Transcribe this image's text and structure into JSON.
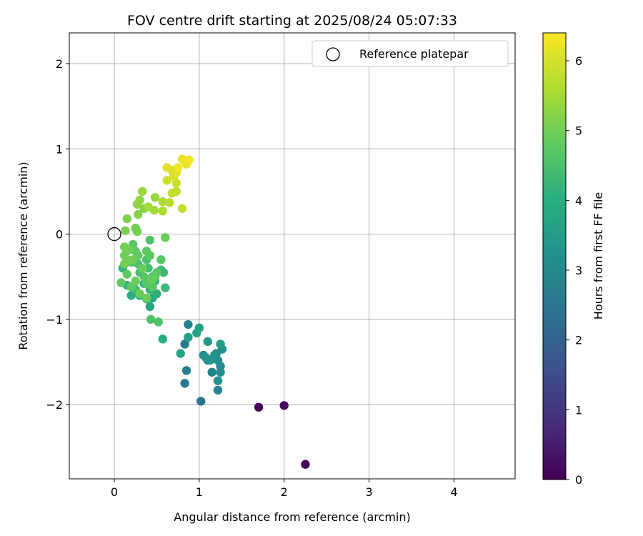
{
  "chart_data": {
    "type": "scatter",
    "title": "FOV centre drift starting at 2025/08/24 05:07:33",
    "xlabel": "Angular distance from reference (arcmin)",
    "ylabel": "Rotation from reference (arcmin)",
    "xlim": [
      -0.53,
      4.72
    ],
    "ylim": [
      -2.87,
      2.36
    ],
    "xticks": [
      0,
      1,
      2,
      3,
      4
    ],
    "yticks": [
      -2,
      -1,
      0,
      1,
      2
    ],
    "grid": true,
    "legend": {
      "placement": "top-right",
      "entries": [
        "Reference platepar"
      ]
    },
    "reference_point": {
      "x": 0,
      "y": 0
    },
    "colorbar": {
      "label": "Hours from first FF file",
      "range": [
        0,
        6.4
      ],
      "ticks": [
        0,
        1,
        2,
        3,
        4,
        5,
        6
      ],
      "colormap": "viridis"
    },
    "series": [
      {
        "points": [
          [
            2.25,
            -2.7,
            0.0
          ],
          [
            1.7,
            -2.03,
            0.05
          ],
          [
            2.0,
            -2.01,
            0.1
          ],
          [
            1.02,
            -1.96,
            2.5
          ],
          [
            0.83,
            -1.75,
            2.6
          ],
          [
            0.85,
            -1.6,
            2.7
          ],
          [
            1.22,
            -1.83,
            2.8
          ],
          [
            1.15,
            -1.62,
            2.9
          ],
          [
            1.2,
            -1.4,
            2.9
          ],
          [
            1.25,
            -1.55,
            3.0
          ],
          [
            1.05,
            -1.42,
            3.0
          ],
          [
            1.1,
            -1.48,
            3.1
          ],
          [
            1.22,
            -1.48,
            3.1
          ],
          [
            1.25,
            -1.62,
            3.15
          ],
          [
            1.27,
            -1.35,
            3.2
          ],
          [
            1.18,
            -1.42,
            3.2
          ],
          [
            1.22,
            -1.72,
            3.25
          ],
          [
            1.13,
            -1.48,
            3.3
          ],
          [
            0.83,
            -1.29,
            2.6
          ],
          [
            0.87,
            -1.06,
            2.8
          ],
          [
            1.1,
            -1.26,
            3.4
          ],
          [
            1.25,
            -1.29,
            3.5
          ],
          [
            1.0,
            -1.1,
            3.6
          ],
          [
            0.87,
            -1.21,
            3.6
          ],
          [
            0.78,
            -1.4,
            3.7
          ],
          [
            0.97,
            -1.16,
            3.7
          ],
          [
            1.08,
            -1.45,
            3.3
          ],
          [
            0.57,
            -1.23,
            4.0
          ],
          [
            0.42,
            -0.85,
            3.8
          ],
          [
            0.38,
            -0.76,
            3.9
          ],
          [
            0.45,
            -0.75,
            3.8
          ],
          [
            0.3,
            -0.72,
            4.0
          ],
          [
            0.2,
            -0.72,
            4.0
          ],
          [
            0.1,
            -0.4,
            4.1
          ],
          [
            0.15,
            -0.6,
            4.1
          ],
          [
            0.22,
            -0.62,
            4.2
          ],
          [
            0.35,
            -0.58,
            4.2
          ],
          [
            0.55,
            -0.42,
            4.3
          ],
          [
            0.48,
            -0.55,
            4.2
          ],
          [
            0.5,
            -0.7,
            4.1
          ],
          [
            0.42,
            -0.65,
            4.2
          ],
          [
            0.58,
            -0.45,
            4.3
          ],
          [
            0.6,
            -0.63,
            4.3
          ],
          [
            0.4,
            -0.4,
            4.4
          ],
          [
            0.25,
            -0.65,
            4.4
          ],
          [
            0.3,
            -0.45,
            4.5
          ],
          [
            0.45,
            -0.5,
            4.5
          ],
          [
            0.38,
            -0.3,
            4.5
          ],
          [
            0.28,
            -0.35,
            4.5
          ],
          [
            0.43,
            -1.0,
            4.6
          ],
          [
            0.52,
            -1.03,
            4.6
          ],
          [
            0.42,
            -0.07,
            4.6
          ],
          [
            0.2,
            -0.33,
            4.7
          ],
          [
            0.38,
            -0.58,
            4.7
          ],
          [
            0.45,
            -0.62,
            4.7
          ],
          [
            0.48,
            -0.5,
            4.7
          ],
          [
            0.35,
            -0.5,
            4.7
          ],
          [
            0.55,
            -0.3,
            4.7
          ],
          [
            0.22,
            -0.12,
            4.7
          ],
          [
            0.25,
            -0.2,
            4.8
          ],
          [
            0.38,
            -0.2,
            4.8
          ],
          [
            0.42,
            -0.25,
            4.8
          ],
          [
            0.5,
            -0.45,
            4.8
          ],
          [
            0.08,
            -0.57,
            4.8
          ],
          [
            0.15,
            -0.47,
            4.8
          ],
          [
            0.2,
            -0.62,
            4.8
          ],
          [
            0.28,
            -0.25,
            4.8
          ],
          [
            0.3,
            -0.7,
            4.9
          ],
          [
            0.38,
            -0.75,
            4.9
          ],
          [
            0.25,
            -0.55,
            4.9
          ],
          [
            0.33,
            -0.4,
            4.9
          ],
          [
            0.45,
            -0.53,
            4.9
          ],
          [
            0.6,
            -0.04,
            4.9
          ],
          [
            0.12,
            -0.25,
            4.9
          ],
          [
            0.15,
            -0.2,
            4.95
          ],
          [
            0.18,
            -0.18,
            4.95
          ],
          [
            0.22,
            -0.3,
            4.95
          ],
          [
            0.12,
            -0.35,
            5.0
          ],
          [
            0.15,
            -0.3,
            5.0
          ],
          [
            0.12,
            -0.15,
            5.0
          ],
          [
            0.25,
            0.07,
            5.0
          ],
          [
            0.27,
            0.03,
            5.05
          ],
          [
            0.15,
            0.18,
            5.1
          ],
          [
            0.13,
            0.04,
            5.1
          ],
          [
            0.28,
            0.23,
            5.2
          ],
          [
            0.35,
            0.3,
            5.2
          ],
          [
            0.3,
            0.4,
            5.3
          ],
          [
            0.27,
            0.35,
            5.3
          ],
          [
            0.33,
            0.5,
            5.4
          ],
          [
            0.48,
            0.43,
            5.4
          ],
          [
            0.47,
            0.28,
            5.5
          ],
          [
            0.4,
            0.32,
            5.5
          ],
          [
            0.57,
            0.27,
            5.6
          ],
          [
            0.57,
            0.38,
            5.6
          ],
          [
            0.65,
            0.37,
            5.7
          ],
          [
            0.68,
            0.48,
            5.8
          ],
          [
            0.73,
            0.5,
            5.8
          ],
          [
            0.8,
            0.3,
            5.8
          ],
          [
            0.73,
            0.6,
            5.9
          ],
          [
            0.62,
            0.63,
            5.9
          ],
          [
            0.7,
            0.68,
            6.0
          ],
          [
            0.68,
            0.75,
            6.0
          ],
          [
            0.73,
            0.72,
            6.1
          ],
          [
            0.62,
            0.78,
            6.1
          ],
          [
            0.85,
            0.82,
            6.2
          ],
          [
            0.8,
            0.88,
            6.2
          ],
          [
            0.88,
            0.87,
            6.3
          ],
          [
            0.75,
            0.78,
            6.3
          ]
        ]
      }
    ]
  }
}
